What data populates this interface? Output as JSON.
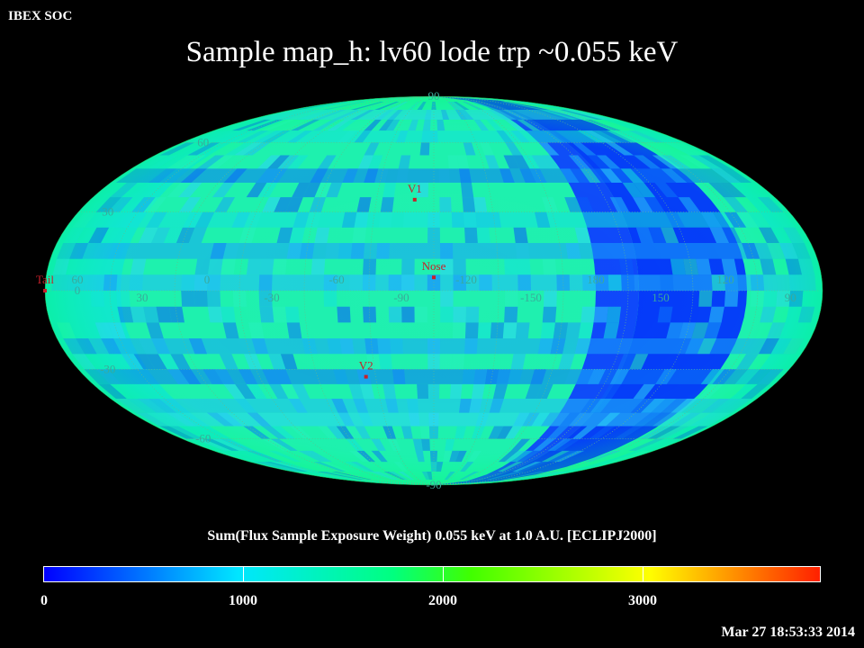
{
  "corner_label": "IBEX SOC",
  "title": "Sample map_h: lv60 lode trp ~0.055 keV",
  "colorbar": {
    "title": "Sum(Flux Sample Exposure Weight) 0.055 keV at 1.0 A.U. [ECLIPJ2000]",
    "ticks": [
      "0",
      "1000",
      "2000",
      "3000"
    ],
    "colors": [
      "#0000ff",
      "#00e6ff",
      "#00ff7f",
      "#40ff00",
      "#ffff00",
      "#ff2000"
    ]
  },
  "timestamp": "Mar 27 18:53:33 2014",
  "lat_labels": [
    "90",
    "60",
    "30",
    "0",
    "-30",
    "-60",
    "-90"
  ],
  "lon_labels": [
    "60",
    "30",
    "0",
    "-30",
    "-60",
    "-90",
    "-120",
    "-150",
    "180",
    "150",
    "120",
    "90"
  ],
  "markers": [
    {
      "label": "V1",
      "lon": -95,
      "lat": 35
    },
    {
      "label": "Nose",
      "lon": -105,
      "lat": 5
    },
    {
      "label": "V2",
      "lon": -70,
      "lat": -33
    },
    {
      "label": "Tail",
      "lon": 75,
      "lat": 0
    }
  ],
  "projection": "mollweide",
  "grid": true
}
